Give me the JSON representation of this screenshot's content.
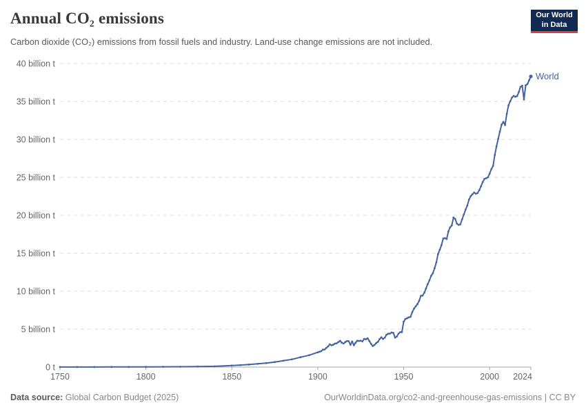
{
  "header": {
    "title": "Annual CO₂ emissions",
    "subtitle": "Carbon dioxide (CO₂) emissions from fossil fuels and industry. Land-use change emissions are not included."
  },
  "logo": {
    "line1": "Our World",
    "line2": "in Data",
    "bg_color": "#122a52",
    "accent_color": "#dc3e34"
  },
  "footer": {
    "source_label": "Data source:",
    "source_value": " Global Carbon Budget (2025)",
    "link_text": "OurWorldinData.org/co2-and-greenhouse-gas-emissions | CC BY"
  },
  "chart_data": {
    "type": "line",
    "title": "Annual CO₂ emissions",
    "subtitle": "Carbon dioxide (CO₂) emissions from fossil fuels and industry. Land-use change emissions are not included.",
    "entity_label": "World",
    "line_color": "#46639f",
    "grid_color": "#dddddd",
    "axis_color": "#a5a5a5",
    "tick_label_color": "#666666",
    "grid": true,
    "unit": "billion tonnes of CO₂",
    "xlim": [
      1750,
      2024
    ],
    "ylim": [
      0,
      40
    ],
    "x_ticks": [
      1750,
      1800,
      1850,
      1900,
      1950,
      2000,
      2024
    ],
    "y_ticks": [
      {
        "value": 0,
        "label": "0 t"
      },
      {
        "value": 5,
        "label": "5 billion t"
      },
      {
        "value": 10,
        "label": "10 billion t"
      },
      {
        "value": 15,
        "label": "15 billion t"
      },
      {
        "value": 20,
        "label": "20 billion t"
      },
      {
        "value": 25,
        "label": "25 billion t"
      },
      {
        "value": 30,
        "label": "30 billion t"
      },
      {
        "value": 35,
        "label": "35 billion t"
      },
      {
        "value": 40,
        "label": "40 billion t"
      }
    ],
    "series": [
      {
        "name": "World",
        "points": [
          [
            1750,
            0.01
          ],
          [
            1760,
            0.011
          ],
          [
            1770,
            0.013
          ],
          [
            1780,
            0.016
          ],
          [
            1790,
            0.02
          ],
          [
            1800,
            0.03
          ],
          [
            1810,
            0.04
          ],
          [
            1820,
            0.05
          ],
          [
            1830,
            0.07
          ],
          [
            1840,
            0.1
          ],
          [
            1850,
            0.2
          ],
          [
            1855,
            0.26
          ],
          [
            1860,
            0.34
          ],
          [
            1865,
            0.43
          ],
          [
            1870,
            0.53
          ],
          [
            1875,
            0.66
          ],
          [
            1880,
            0.84
          ],
          [
            1885,
            1.02
          ],
          [
            1890,
            1.3
          ],
          [
            1895,
            1.56
          ],
          [
            1900,
            1.95
          ],
          [
            1901,
            2.02
          ],
          [
            1902,
            2.1
          ],
          [
            1903,
            2.3
          ],
          [
            1904,
            2.32
          ],
          [
            1905,
            2.54
          ],
          [
            1906,
            2.73
          ],
          [
            1907,
            3.0
          ],
          [
            1908,
            2.87
          ],
          [
            1909,
            2.95
          ],
          [
            1910,
            3.09
          ],
          [
            1911,
            3.14
          ],
          [
            1912,
            3.3
          ],
          [
            1913,
            3.46
          ],
          [
            1914,
            3.21
          ],
          [
            1915,
            3.1
          ],
          [
            1916,
            3.3
          ],
          [
            1917,
            3.43
          ],
          [
            1918,
            3.41
          ],
          [
            1919,
            2.95
          ],
          [
            1920,
            3.37
          ],
          [
            1921,
            2.87
          ],
          [
            1922,
            3.2
          ],
          [
            1923,
            3.47
          ],
          [
            1924,
            3.44
          ],
          [
            1925,
            3.47
          ],
          [
            1926,
            3.38
          ],
          [
            1927,
            3.71
          ],
          [
            1928,
            3.66
          ],
          [
            1929,
            3.79
          ],
          [
            1930,
            3.44
          ],
          [
            1931,
            3.06
          ],
          [
            1932,
            2.77
          ],
          [
            1933,
            2.92
          ],
          [
            1934,
            3.16
          ],
          [
            1935,
            3.33
          ],
          [
            1936,
            3.68
          ],
          [
            1937,
            3.93
          ],
          [
            1938,
            3.7
          ],
          [
            1939,
            3.86
          ],
          [
            1940,
            4.26
          ],
          [
            1941,
            4.39
          ],
          [
            1942,
            4.41
          ],
          [
            1943,
            4.55
          ],
          [
            1944,
            4.5
          ],
          [
            1945,
            3.87
          ],
          [
            1946,
            4.04
          ],
          [
            1947,
            4.41
          ],
          [
            1948,
            4.6
          ],
          [
            1949,
            4.62
          ],
          [
            1950,
            5.97
          ],
          [
            1951,
            6.34
          ],
          [
            1952,
            6.44
          ],
          [
            1953,
            6.55
          ],
          [
            1954,
            6.63
          ],
          [
            1955,
            7.25
          ],
          [
            1956,
            7.7
          ],
          [
            1957,
            8.0
          ],
          [
            1958,
            8.3
          ],
          [
            1959,
            8.74
          ],
          [
            1960,
            9.39
          ],
          [
            1961,
            9.42
          ],
          [
            1962,
            9.81
          ],
          [
            1963,
            10.35
          ],
          [
            1964,
            10.93
          ],
          [
            1965,
            11.43
          ],
          [
            1966,
            12.02
          ],
          [
            1967,
            12.37
          ],
          [
            1968,
            13.03
          ],
          [
            1969,
            13.79
          ],
          [
            1970,
            14.9
          ],
          [
            1971,
            15.46
          ],
          [
            1972,
            16.08
          ],
          [
            1973,
            16.95
          ],
          [
            1974,
            16.98
          ],
          [
            1975,
            16.88
          ],
          [
            1976,
            17.87
          ],
          [
            1977,
            18.4
          ],
          [
            1978,
            18.66
          ],
          [
            1979,
            19.7
          ],
          [
            1980,
            19.5
          ],
          [
            1981,
            18.9
          ],
          [
            1982,
            18.73
          ],
          [
            1983,
            18.81
          ],
          [
            1984,
            19.46
          ],
          [
            1985,
            20.1
          ],
          [
            1986,
            20.74
          ],
          [
            1987,
            21.27
          ],
          [
            1988,
            22.07
          ],
          [
            1989,
            22.52
          ],
          [
            1990,
            22.76
          ],
          [
            1991,
            23.0
          ],
          [
            1992,
            22.84
          ],
          [
            1993,
            22.93
          ],
          [
            1994,
            23.31
          ],
          [
            1995,
            23.82
          ],
          [
            1996,
            24.38
          ],
          [
            1997,
            24.79
          ],
          [
            1998,
            24.88
          ],
          [
            1999,
            25.0
          ],
          [
            2000,
            25.48
          ],
          [
            2001,
            26.07
          ],
          [
            2002,
            26.5
          ],
          [
            2003,
            27.94
          ],
          [
            2004,
            29.05
          ],
          [
            2005,
            30.05
          ],
          [
            2006,
            31.04
          ],
          [
            2007,
            31.94
          ],
          [
            2008,
            32.31
          ],
          [
            2009,
            31.89
          ],
          [
            2010,
            33.36
          ],
          [
            2011,
            34.48
          ],
          [
            2012,
            35.01
          ],
          [
            2013,
            35.51
          ],
          [
            2014,
            35.73
          ],
          [
            2015,
            35.62
          ],
          [
            2016,
            35.71
          ],
          [
            2017,
            36.25
          ],
          [
            2018,
            36.92
          ],
          [
            2019,
            37.08
          ],
          [
            2020,
            35.26
          ],
          [
            2021,
            37.12
          ],
          [
            2022,
            37.29
          ],
          [
            2023,
            37.79
          ],
          [
            2024,
            38.3
          ]
        ]
      }
    ]
  }
}
